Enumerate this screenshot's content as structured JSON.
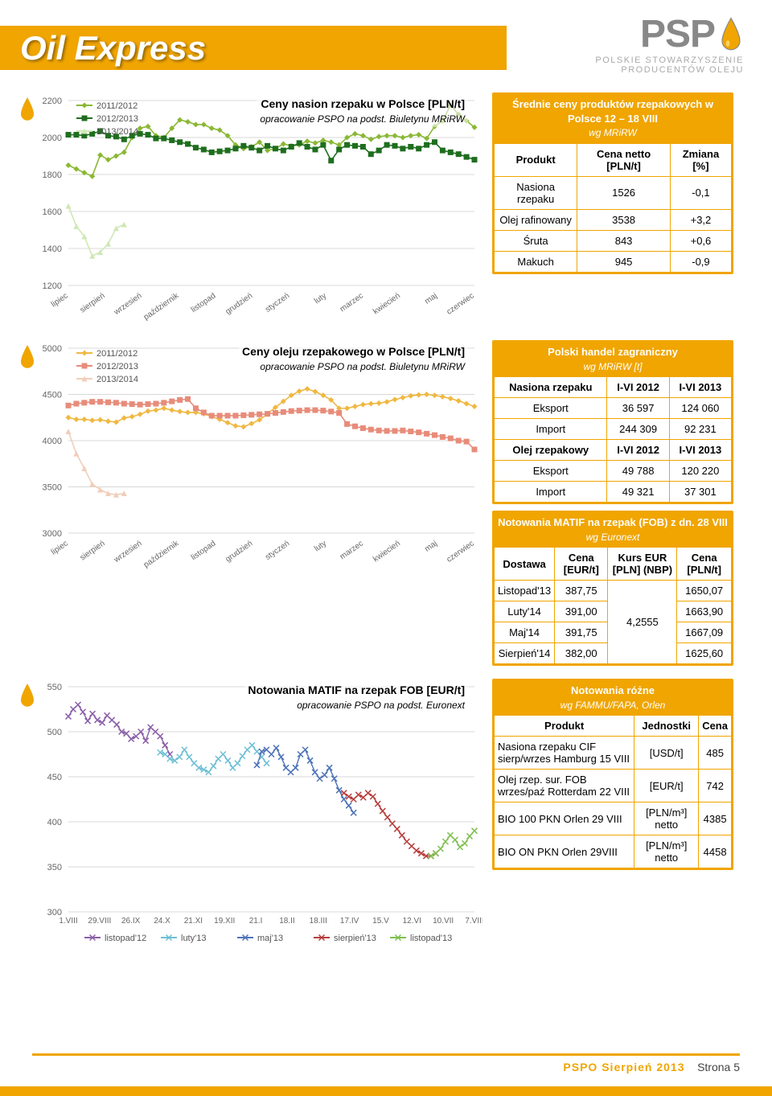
{
  "header": {
    "title": "Oil Express",
    "logo_main": "PSP",
    "logo_sub_1": "POLSKIE STOWARZYSZENIE",
    "logo_sub_2": "PRODUCENTÓW OLEJU"
  },
  "chart1": {
    "title": "Ceny nasion rzepaku w Polsce [PLN/t]",
    "subtitle": "opracowanie PSPO na podst. Biuletynu MRiRW",
    "type": "line",
    "ylim": [
      1200,
      2200
    ],
    "ytick_step": 200,
    "yticks": [
      "1200",
      "1400",
      "1600",
      "1800",
      "2000",
      "2200"
    ],
    "x_labels": [
      "lipiec",
      "sierpień",
      "wrzesień",
      "październik",
      "listopad",
      "grudzień",
      "styczeń",
      "luty",
      "marzec",
      "kwiecień",
      "maj",
      "czerwiec"
    ],
    "series": [
      {
        "name": "2011/2012",
        "color": "#8ab833",
        "marker": "diamond",
        "values": [
          1850,
          1830,
          1810,
          1790,
          1905,
          1880,
          1900,
          1920,
          2000,
          2050,
          2060,
          2010,
          2000,
          2050,
          2095,
          2085,
          2070,
          2070,
          2050,
          2040,
          2010,
          1960,
          1940,
          1950,
          1975,
          1930,
          1940,
          1965,
          1955,
          1960,
          1980,
          1970,
          1985,
          1975,
          1960,
          2000,
          2020,
          2010,
          1990,
          2005,
          2010,
          2010,
          2000,
          2010,
          2015,
          1995,
          2060,
          2090,
          2175,
          2125,
          2090,
          2055
        ]
      },
      {
        "name": "2012/2013",
        "color": "#1e6e1e",
        "marker": "square",
        "values": [
          2015,
          2015,
          2010,
          2020,
          2035,
          2010,
          2005,
          1990,
          2010,
          2020,
          2015,
          1995,
          1995,
          1985,
          1975,
          1965,
          1945,
          1935,
          1920,
          1925,
          1930,
          1940,
          1955,
          1945,
          1930,
          1955,
          1940,
          1930,
          1950,
          1970,
          1950,
          1935,
          1960,
          1875,
          1935,
          1960,
          1955,
          1950,
          1910,
          1930,
          1960,
          1955,
          1940,
          1950,
          1940,
          1960,
          1975,
          1930,
          1920,
          1910,
          1895,
          1880
        ]
      },
      {
        "name": "2013/2014",
        "color": "#cfe8b5",
        "marker": "triangle",
        "values": [
          1630,
          1520,
          1465,
          1360,
          1380,
          1425,
          1510,
          1530
        ]
      }
    ],
    "legend_pos": "top-left",
    "background_color": "#ffffff",
    "grid_color": "#d8d8d8",
    "line_width": 1.6
  },
  "chart2": {
    "title": "Ceny oleju rzepakowego w Polsce [PLN/t]",
    "subtitle": "opracowanie PSPO na podst. Biuletynu MRiRW",
    "type": "line",
    "ylim": [
      3000,
      5000
    ],
    "ytick_step": 500,
    "yticks": [
      "3000",
      "3500",
      "4000",
      "4500",
      "5000"
    ],
    "x_labels": [
      "lipiec",
      "sierpień",
      "wrzesień",
      "październik",
      "listopad",
      "grudzień",
      "styczeń",
      "luty",
      "marzec",
      "kwiecień",
      "maj",
      "czerwiec"
    ],
    "series": [
      {
        "name": "2011/2012",
        "color": "#f0b840",
        "marker": "diamond",
        "values": [
          4250,
          4230,
          4230,
          4220,
          4225,
          4210,
          4200,
          4245,
          4260,
          4285,
          4320,
          4330,
          4350,
          4330,
          4315,
          4305,
          4305,
          4290,
          4260,
          4230,
          4195,
          4160,
          4150,
          4185,
          4225,
          4290,
          4360,
          4425,
          4490,
          4535,
          4560,
          4530,
          4490,
          4440,
          4350,
          4350,
          4370,
          4390,
          4400,
          4405,
          4420,
          4445,
          4465,
          4485,
          4495,
          4500,
          4490,
          4475,
          4455,
          4430,
          4400,
          4370
        ]
      },
      {
        "name": "2012/2013",
        "color": "#e88c7a",
        "marker": "square",
        "values": [
          4380,
          4400,
          4410,
          4420,
          4420,
          4415,
          4410,
          4400,
          4395,
          4390,
          4395,
          4400,
          4410,
          4425,
          4440,
          4450,
          4350,
          4305,
          4270,
          4270,
          4270,
          4270,
          4275,
          4280,
          4285,
          4290,
          4300,
          4310,
          4320,
          4325,
          4330,
          4330,
          4325,
          4315,
          4300,
          4180,
          4155,
          4135,
          4120,
          4110,
          4105,
          4105,
          4110,
          4100,
          4090,
          4075,
          4060,
          4040,
          4025,
          4000,
          3990,
          3905
        ]
      },
      {
        "name": "2013/2014",
        "color": "#f0ceba",
        "marker": "triangle",
        "values": [
          4100,
          3860,
          3700,
          3530,
          3470,
          3430,
          3415,
          3430
        ]
      }
    ],
    "legend_pos": "top-left",
    "background_color": "#ffffff",
    "grid_color": "#d8d8d8",
    "line_width": 1.6
  },
  "chart3": {
    "title": "Notowania MATIF na rzepak FOB [EUR/t]",
    "subtitle": "opracowanie PSPO na podst. Euronext",
    "type": "line",
    "ylim": [
      300,
      550
    ],
    "ytick_step": 50,
    "yticks": [
      "300",
      "350",
      "400",
      "450",
      "500",
      "550"
    ],
    "x_labels": [
      "1.VIII",
      "29.VIII",
      "26.IX",
      "24.X",
      "21.XI",
      "19.XII",
      "21.I",
      "18.II",
      "18.III",
      "17.IV",
      "15.V",
      "12.VI",
      "10.VII",
      "7.VIII"
    ],
    "series": [
      {
        "name": "listopad'12",
        "color": "#8a5fa8",
        "marker": "x",
        "values": [
          517,
          525,
          530,
          522,
          512,
          520,
          513,
          510,
          518,
          513,
          508,
          500,
          498,
          492,
          495,
          500,
          490,
          505,
          500,
          495,
          485,
          475
        ]
      },
      {
        "name": "luty'13",
        "color": "#6fbfd4",
        "marker": "x",
        "values": [
          null,
          null,
          null,
          null,
          null,
          null,
          null,
          null,
          null,
          null,
          null,
          null,
          null,
          null,
          null,
          null,
          null,
          null,
          null,
          477,
          475,
          470,
          468,
          472,
          480,
          472,
          465,
          460,
          458,
          455,
          462,
          470,
          475,
          468,
          460,
          465,
          473,
          480,
          485,
          478,
          472,
          465
        ]
      },
      {
        "name": "maj'13",
        "color": "#4e73b8",
        "marker": "x",
        "values": [
          null,
          null,
          null,
          null,
          null,
          null,
          null,
          null,
          null,
          null,
          null,
          null,
          null,
          null,
          null,
          null,
          null,
          null,
          null,
          null,
          null,
          null,
          null,
          null,
          null,
          null,
          null,
          null,
          null,
          null,
          null,
          null,
          null,
          null,
          null,
          null,
          null,
          null,
          null,
          463,
          478,
          480,
          475,
          482,
          472,
          460,
          455,
          460,
          475,
          480,
          468,
          455,
          448,
          452,
          460,
          448,
          435,
          425,
          418,
          410
        ]
      },
      {
        "name": "sierpień'13",
        "color": "#b83d3d",
        "marker": "x",
        "values": [
          null,
          null,
          null,
          null,
          null,
          null,
          null,
          null,
          null,
          null,
          null,
          null,
          null,
          null,
          null,
          null,
          null,
          null,
          null,
          null,
          null,
          null,
          null,
          null,
          null,
          null,
          null,
          null,
          null,
          null,
          null,
          null,
          null,
          null,
          null,
          null,
          null,
          null,
          null,
          null,
          null,
          null,
          null,
          null,
          null,
          null,
          null,
          null,
          null,
          null,
          null,
          null,
          null,
          null,
          null,
          null,
          null,
          432,
          428,
          425,
          430,
          427,
          432,
          428,
          420,
          412,
          405,
          398,
          392,
          385,
          378,
          373,
          368,
          365,
          362,
          362,
          365
        ]
      },
      {
        "name": "listopad'13",
        "color": "#7fbf4f",
        "marker": "x",
        "values": [
          null,
          null,
          null,
          null,
          null,
          null,
          null,
          null,
          null,
          null,
          null,
          null,
          null,
          null,
          null,
          null,
          null,
          null,
          null,
          null,
          null,
          null,
          null,
          null,
          null,
          null,
          null,
          null,
          null,
          null,
          null,
          null,
          null,
          null,
          null,
          null,
          null,
          null,
          null,
          null,
          null,
          null,
          null,
          null,
          null,
          null,
          null,
          null,
          null,
          null,
          null,
          null,
          null,
          null,
          null,
          null,
          null,
          null,
          null,
          null,
          null,
          null,
          null,
          null,
          null,
          null,
          null,
          null,
          null,
          null,
          null,
          null,
          null,
          null,
          null,
          362,
          365,
          370,
          378,
          385,
          380,
          372,
          376,
          384,
          390
        ]
      }
    ],
    "background_color": "#ffffff",
    "grid_color": "#d8d8d8",
    "line_width": 1.4
  },
  "box1": {
    "title": "Średnie ceny produktów rzepakowych w Polsce  12 – 18 VIII",
    "sub": "wg MRiRW",
    "col_product": "Produkt",
    "col_price": "Cena netto [PLN/t]",
    "col_change": "Zmiana [%]",
    "rows": [
      {
        "p": "Nasiona rzepaku",
        "v": "1526",
        "c": "-0,1"
      },
      {
        "p": "Olej rafinowany",
        "v": "3538",
        "c": "+3,2"
      },
      {
        "p": "Śruta",
        "v": "843",
        "c": "+0,6"
      },
      {
        "p": "Makuch",
        "v": "945",
        "c": "-0,9"
      }
    ]
  },
  "box2": {
    "title": "Polski handel zagraniczny",
    "sub": "wg MRiRW [t]",
    "h1": "Nasiona rzepaku",
    "h2": "I-VI 2012",
    "h3": "I-VI 2013",
    "r1": {
      "l": "Eksport",
      "a": "36 597",
      "b": "124 060"
    },
    "r2": {
      "l": "Import",
      "a": "244 309",
      "b": "92 231"
    },
    "h4": "Olej rzepakowy",
    "h5": "I-VI 2012",
    "h6": "I-VI 2013",
    "r3": {
      "l": "Eksport",
      "a": "49 788",
      "b": "120 220"
    },
    "r4": {
      "l": "Import",
      "a": "49 321",
      "b": "37 301"
    }
  },
  "box3": {
    "title": "Notowania MATIF na rzepak (FOB) z dn. 28 VIII",
    "sub": "wg Euronext",
    "c1": "Dostawa",
    "c2": "Cena [EUR/t]",
    "c3": "Kurs EUR [PLN] (NBP)",
    "c4": "Cena [PLN/t]",
    "rows": [
      {
        "d": "Listopad'13",
        "e": "387,75",
        "p": "1650,07"
      },
      {
        "d": "Luty'14",
        "e": "391,00",
        "p": "1663,90"
      },
      {
        "d": "Maj'14",
        "e": "391,75",
        "p": "1667,09"
      },
      {
        "d": "Sierpień'14",
        "e": "382,00",
        "p": "1625,60"
      }
    ],
    "rate": "4,2555"
  },
  "box4": {
    "title": "Notowania różne",
    "sub": "wg FAMMU/FAPA, Orlen",
    "c1": "Produkt",
    "c2": "Jednostki",
    "c3": "Cena",
    "rows": [
      {
        "p": "Nasiona rzepaku CIF sierp/wrzes Hamburg 15 VIII",
        "u": "[USD/t]",
        "c": "485"
      },
      {
        "p": "Olej rzep. sur. FOB wrzes/paź Rotterdam 22 VIII",
        "u": "[EUR/t]",
        "c": "742"
      },
      {
        "p": "BIO 100 PKN Orlen 29 VIII",
        "u": "[PLN/m³] netto",
        "c": "4385"
      },
      {
        "p": "BIO ON PKN Orlen 29VIII",
        "u": "[PLN/m³] netto",
        "c": "4458"
      }
    ]
  },
  "footer": {
    "left": "PSPO Sierpień 2013",
    "right": "Strona 5"
  },
  "colors": {
    "accent": "#f0a500"
  }
}
